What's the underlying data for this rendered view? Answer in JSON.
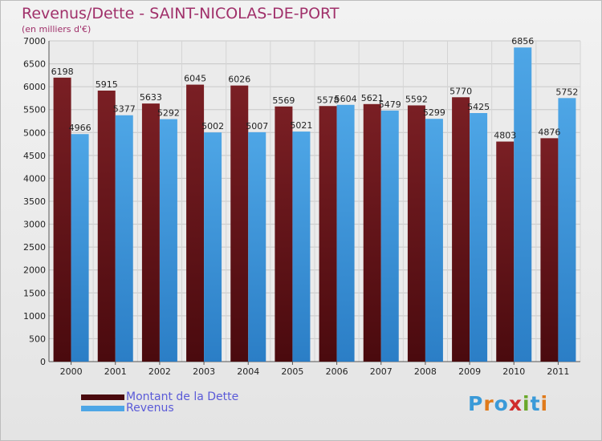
{
  "chart": {
    "title": "Revenus/Dette - SAINT-NICOLAS-DE-PORT",
    "subtitle": "(en milliers d'€)"
  },
  "legend": {
    "dette_label": "Montant de la Dette",
    "revenus_label": "Revenus"
  },
  "logo": {
    "text": "Proxiti",
    "letters": [
      "P",
      "r",
      "o",
      "x",
      "i",
      "t",
      "i"
    ],
    "colors": [
      "#3a9ad8",
      "#e07a1a",
      "#3a9ad8",
      "#d02c2c",
      "#6aa82a",
      "#3a9ad8",
      "#e07a1a"
    ]
  },
  "colors": {
    "dette": "#7a1f24",
    "dette_dark": "#4a0a0e",
    "revenus": "#4ea6e6",
    "revenus_dark": "#2b7ec6"
  },
  "chart_data": {
    "type": "bar",
    "title": "Revenus/Dette - SAINT-NICOLAS-DE-PORT",
    "subtitle": "(en milliers d'€)",
    "categories": [
      "2000",
      "2001",
      "2002",
      "2003",
      "2004",
      "2005",
      "2006",
      "2007",
      "2008",
      "2009",
      "2010",
      "2011"
    ],
    "series": [
      {
        "name": "Montant de la Dette",
        "values": [
          6198,
          5915,
          5633,
          6045,
          6026,
          5569,
          5578,
          5621,
          5592,
          5770,
          4803,
          4876
        ]
      },
      {
        "name": "Revenus",
        "values": [
          4966,
          5377,
          5292,
          5002,
          5007,
          5021,
          5604,
          5479,
          5299,
          5425,
          6856,
          5752
        ]
      }
    ],
    "ylim": [
      0,
      7000
    ],
    "yticks": [
      0,
      500,
      1000,
      1500,
      2000,
      2500,
      3000,
      3500,
      4000,
      4500,
      5000,
      5500,
      6000,
      6500,
      7000
    ],
    "grid": true,
    "legend_position": "bottom-left"
  }
}
